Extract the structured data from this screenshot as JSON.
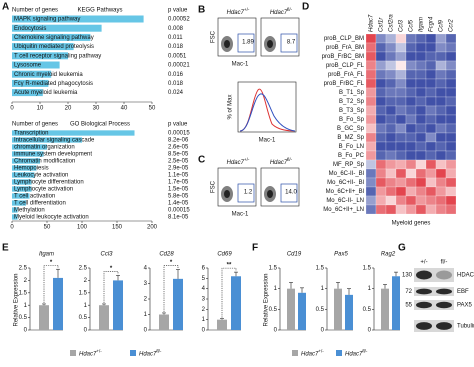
{
  "A": {
    "label": "A",
    "kegg": {
      "x_label": "Number of genes",
      "title": "KEGG Pathways",
      "p_header": "p value",
      "terms": [
        "MAPK signaling pathway",
        "Endocytosis",
        "Chemokine signaling pathway",
        "Ubiquitin mediated proteolysis",
        "T cell receptor signaling pathway",
        "Lysosome",
        "Chronic myeloid leukemia",
        "Fcγ R-mediated phagocytosis",
        "Acute myeloid leukemia"
      ],
      "values": [
        47,
        32,
        28,
        22,
        20,
        17,
        14,
        13,
        11
      ],
      "p_values": [
        "0.00052",
        "0.008",
        "0.011",
        "0.018",
        "0.0051",
        "0.00021",
        "0.016",
        "0.018",
        "0.024"
      ],
      "xlim": [
        0,
        50
      ],
      "xticks": [
        0,
        10,
        20,
        30,
        40,
        50
      ]
    },
    "go": {
      "x_label": "Number of genes",
      "title": "GO Biological Process",
      "p_header": "p value",
      "terms": [
        "Transcription",
        "Intracellular signaling cascade",
        "chromatin organization",
        "immune system development",
        "Chromatin modification",
        "Hemopoiesis",
        "Leukocyte activation",
        "Lymphocyte differentiation",
        "Lymphocyte activation",
        "T cell activation",
        "T cell differentiation",
        "Methylation",
        "Myeloid leukocyte activation"
      ],
      "values": [
        175,
        100,
        50,
        45,
        40,
        35,
        32,
        28,
        28,
        25,
        20,
        8,
        8
      ],
      "p_values": [
        "0.00015",
        "8.2e-06",
        "2.6e-05",
        "8.5e-05",
        "2.5e-05",
        "2.9e-05",
        "1.1e-05",
        "1.7e-05",
        "1.5e-05",
        "5.8e-05",
        "1.4e-05",
        "0.00015",
        "8.1e-05"
      ],
      "xlim": [
        0,
        200
      ],
      "xticks": [
        0,
        50,
        100,
        150,
        200
      ]
    }
  },
  "B": {
    "label": "B",
    "genotypes": [
      {
        "name": "Hdac7",
        "sup": "+/-"
      },
      {
        "name": "Hdac7",
        "sup": "fl/-"
      }
    ],
    "gate_values": [
      "1.89",
      "8.7"
    ],
    "y_label": "FSC",
    "x_label": "Mac-1",
    "hist_y_label": "% of Max",
    "hist_x_label": "Mac-1"
  },
  "C": {
    "label": "C",
    "genotypes": [
      {
        "name": "Hdac7",
        "sup": "+/-"
      },
      {
        "name": "Hdac7",
        "sup": "fl/-"
      }
    ],
    "gate_values": [
      "1.2",
      "14.0"
    ],
    "y_label": "FSC",
    "x_label": "Mac-1"
  },
  "D": {
    "label": "D",
    "genes": [
      "Hdac7",
      "Csf1r",
      "Csf2ra",
      "Ccl3",
      "Ccl5",
      "Itgam",
      "Fcgr4",
      "Ccl9",
      "Ccr2"
    ],
    "samples": [
      "proB_CLP_BM",
      "proB_FrA_BM",
      "proB_FrBC_BM",
      "proB_CLP_FL",
      "proB_FrA_FL",
      "proB_FrBC_FL",
      "B_T1_Sp",
      "B_T2_Sp",
      "B_T3_Sp",
      "B_Fo_Sp",
      "B_GC_Sp",
      "B_MZ_Sp",
      "B_Fo_LN",
      "B_Fo_PC",
      "MF_RP_Sp",
      "Mo_6C-II-_Bl",
      "Mo_6C+II-_Bl",
      "Mo_6C+II+_Bl",
      "Mo_6C-II-_LN",
      "Mo_6C+II+_LN"
    ],
    "x_label": "Myeloid genes",
    "z": [
      [
        0.9,
        -0.6,
        -0.4,
        0.2,
        -0.7,
        -0.8,
        -0.9,
        -0.5,
        -0.8
      ],
      [
        0.7,
        -0.8,
        -0.6,
        -0.3,
        -0.8,
        -0.9,
        -0.9,
        -0.6,
        -0.7
      ],
      [
        0.8,
        -0.9,
        -0.7,
        -0.5,
        -0.9,
        -0.9,
        -0.8,
        -0.8,
        -0.9
      ],
      [
        0.6,
        -0.5,
        -0.3,
        0.1,
        -0.6,
        -0.7,
        -0.8,
        -0.4,
        -0.6
      ],
      [
        0.7,
        -0.7,
        -0.6,
        -0.4,
        -0.8,
        -0.8,
        -0.9,
        -0.7,
        -0.8
      ],
      [
        0.8,
        -0.9,
        -0.8,
        -0.6,
        -0.9,
        -0.9,
        -0.9,
        -0.8,
        -0.9
      ],
      [
        0.5,
        -0.8,
        -0.7,
        -0.7,
        -0.8,
        -0.9,
        -0.8,
        -0.9,
        -0.9
      ],
      [
        0.6,
        -0.9,
        -0.8,
        -0.8,
        -0.9,
        -0.8,
        -0.9,
        -0.9,
        -0.8
      ],
      [
        0.4,
        -0.8,
        -0.9,
        -0.7,
        -0.8,
        -0.9,
        -0.7,
        -0.8,
        -0.9
      ],
      [
        0.5,
        -0.9,
        -0.8,
        -0.9,
        -0.7,
        -0.9,
        -0.8,
        -0.9,
        -0.9
      ],
      [
        0.3,
        -0.7,
        -0.8,
        -0.6,
        -0.9,
        -0.8,
        -0.9,
        -0.7,
        -0.8
      ],
      [
        0.6,
        -0.8,
        -0.9,
        -0.8,
        -0.8,
        -0.9,
        -0.6,
        -0.9,
        -0.9
      ],
      [
        0.4,
        -0.9,
        -0.9,
        -0.9,
        -0.9,
        -0.8,
        -0.9,
        -0.8,
        -0.9
      ],
      [
        0.5,
        -0.8,
        -0.7,
        -0.8,
        -0.9,
        -0.9,
        -0.8,
        -0.9,
        -0.8
      ],
      [
        -0.3,
        0.7,
        0.5,
        0.4,
        0.6,
        0.2,
        0.8,
        0.3,
        0.5
      ],
      [
        -0.7,
        0.6,
        0.3,
        0.8,
        0.2,
        0.7,
        0.5,
        0.9,
        0.4
      ],
      [
        -0.6,
        0.8,
        0.6,
        0.5,
        0.7,
        0.9,
        0.3,
        0.6,
        0.8
      ],
      [
        -0.8,
        0.5,
        0.7,
        0.9,
        0.4,
        0.6,
        0.8,
        0.5,
        0.3
      ],
      [
        -0.5,
        0.4,
        0.2,
        0.6,
        0.8,
        0.5,
        0.6,
        0.7,
        0.9
      ],
      [
        -0.7,
        0.7,
        0.8,
        0.3,
        0.5,
        0.8,
        0.4,
        0.6,
        0.7
      ]
    ]
  },
  "E": {
    "label": "E",
    "y_label": "Relative Expression",
    "legend": [
      {
        "name": "Hdac7",
        "sup": "+/-",
        "color": "#a6a6a6"
      },
      {
        "name": "Hdac7",
        "sup": "fl/-",
        "color": "#4a8fd4"
      }
    ],
    "plots": [
      {
        "gene": "Itgam",
        "values": [
          1,
          2.1
        ],
        "errors": [
          0.05,
          0.35
        ],
        "sig": "*",
        "ylim": [
          0,
          2.5
        ],
        "yticks": [
          0,
          0.5,
          1,
          1.5,
          2,
          2.5
        ]
      },
      {
        "gene": "Ccl3",
        "values": [
          1,
          2.0
        ],
        "errors": [
          0.05,
          0.2
        ],
        "sig": "*",
        "ylim": [
          0,
          2.5
        ],
        "yticks": [
          0,
          0.5,
          1,
          1.5,
          2,
          2.5
        ]
      },
      {
        "gene": "Cd28",
        "values": [
          1,
          3.3
        ],
        "errors": [
          0.1,
          0.6
        ],
        "sig": "*",
        "ylim": [
          0,
          4
        ],
        "yticks": [
          0,
          1,
          2,
          3,
          4
        ]
      },
      {
        "gene": "Cd69",
        "values": [
          1,
          5.2
        ],
        "errors": [
          0.1,
          0.4
        ],
        "sig": "**",
        "ylim": [
          0,
          6
        ],
        "yticks": [
          0,
          1,
          2,
          3,
          4,
          5,
          6
        ]
      }
    ]
  },
  "F": {
    "label": "F",
    "y_label": "Relative Expression",
    "legend": [
      {
        "name": "Hdac7",
        "sup": "+/-",
        "color": "#a6a6a6"
      },
      {
        "name": "Hdac7",
        "sup": "fl/-",
        "color": "#4a8fd4"
      }
    ],
    "plots": [
      {
        "gene": "Cd19",
        "values": [
          1,
          0.9
        ],
        "errors": [
          0.15,
          0.12
        ],
        "ylim": [
          0,
          1.5
        ],
        "yticks": [
          0,
          0.5,
          1,
          1.5
        ]
      },
      {
        "gene": "Pax5",
        "values": [
          1,
          0.85
        ],
        "errors": [
          0.15,
          0.15
        ],
        "ylim": [
          0,
          1.5
        ],
        "yticks": [
          0,
          0.5,
          1,
          1.5
        ]
      },
      {
        "gene": "Rag2",
        "values": [
          1,
          1.3
        ],
        "errors": [
          0.1,
          0.1
        ],
        "ylim": [
          0,
          1.5
        ],
        "yticks": [
          0,
          0.5,
          1,
          1.5
        ]
      }
    ]
  },
  "G": {
    "label": "G",
    "lanes": [
      "+/-",
      "fl/-"
    ],
    "proteins": [
      "HDAC7",
      "EBF",
      "PAX5",
      "Tubulin"
    ],
    "markers": [
      "130",
      "72",
      "55"
    ]
  }
}
